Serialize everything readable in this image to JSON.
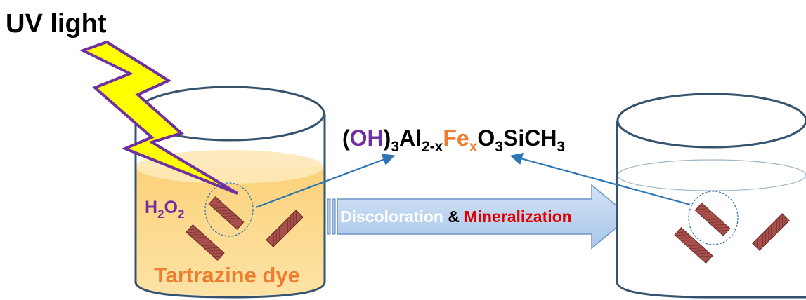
{
  "light_label": "UV light",
  "oxidant": {
    "base": "H",
    "sub1": "2",
    "mid": "O",
    "sub2": "2"
  },
  "dye_label": "Tartrazine dye",
  "formula": {
    "open_paren": "(",
    "oh": "OH",
    "close_paren": ")",
    "sub_3a": "3",
    "al": "Al",
    "sub_2x": "2-x",
    "fe": "Fe",
    "sub_x": "x",
    "o": "O",
    "sub_3b": "3",
    "sich": "SiCH",
    "sub_3c": "3"
  },
  "process": {
    "part1": "Discoloration",
    "amp": " & ",
    "part2": "Mineralization"
  },
  "colors": {
    "purple": "#7030a0",
    "orange": "#ed7d31",
    "red": "#e00000",
    "beaker_outline": "#35536f",
    "dye_liquid": "#fcd98a",
    "arrow_fill": "#bcd3ef",
    "pointer_blue": "#2e75b6",
    "bolt_fill": "#ffff00",
    "bolt_outline": "#7030a0",
    "particle": "#9c4a48"
  }
}
